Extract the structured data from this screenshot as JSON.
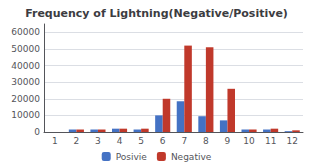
{
  "chart_data": {
    "type": "bar",
    "title": "Frequency of Lightning(Negative/Positive)",
    "categories": [
      "1",
      "2",
      "3",
      "4",
      "5",
      "6",
      "7",
      "8",
      "9",
      "10",
      "11",
      "12"
    ],
    "series": [
      {
        "name": "Posivie",
        "color": "#4472C4",
        "values": [
          0,
          1500,
          1500,
          2000,
          1500,
          10000,
          18500,
          9500,
          7000,
          1500,
          1500,
          500
        ]
      },
      {
        "name": "Negative",
        "color": "#C0392B",
        "values": [
          0,
          1500,
          1500,
          2000,
          2000,
          20000,
          52000,
          51000,
          26000,
          1500,
          2000,
          1000
        ]
      }
    ],
    "ylim": [
      0,
      65000
    ],
    "yticks": [
      0,
      10000,
      20000,
      30000,
      40000,
      50000,
      60000
    ],
    "grid": true,
    "legend": "bottom"
  }
}
